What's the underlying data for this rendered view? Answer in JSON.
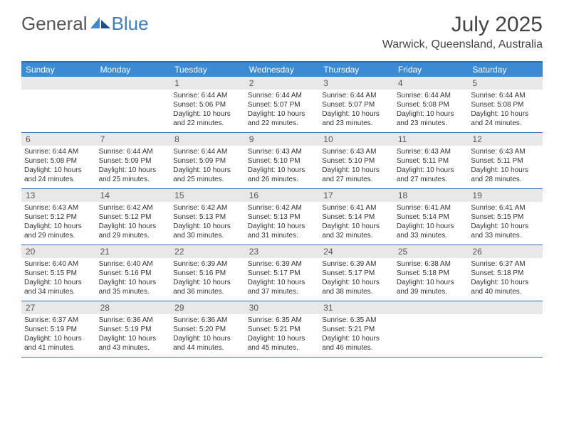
{
  "logo": {
    "text1": "General",
    "text2": "Blue"
  },
  "title": "July 2025",
  "location": "Warwick, Queensland, Australia",
  "colors": {
    "header_bg": "#3b8bd4",
    "border": "#2e6fb5",
    "daynum_bg": "#e8e8e8",
    "text": "#333333"
  },
  "day_names": [
    "Sunday",
    "Monday",
    "Tuesday",
    "Wednesday",
    "Thursday",
    "Friday",
    "Saturday"
  ],
  "weeks": [
    [
      {
        "n": "",
        "sr": "",
        "ss": "",
        "dl": ""
      },
      {
        "n": "",
        "sr": "",
        "ss": "",
        "dl": ""
      },
      {
        "n": "1",
        "sr": "6:44 AM",
        "ss": "5:06 PM",
        "dl": "10 hours and 22 minutes."
      },
      {
        "n": "2",
        "sr": "6:44 AM",
        "ss": "5:07 PM",
        "dl": "10 hours and 22 minutes."
      },
      {
        "n": "3",
        "sr": "6:44 AM",
        "ss": "5:07 PM",
        "dl": "10 hours and 23 minutes."
      },
      {
        "n": "4",
        "sr": "6:44 AM",
        "ss": "5:08 PM",
        "dl": "10 hours and 23 minutes."
      },
      {
        "n": "5",
        "sr": "6:44 AM",
        "ss": "5:08 PM",
        "dl": "10 hours and 24 minutes."
      }
    ],
    [
      {
        "n": "6",
        "sr": "6:44 AM",
        "ss": "5:08 PM",
        "dl": "10 hours and 24 minutes."
      },
      {
        "n": "7",
        "sr": "6:44 AM",
        "ss": "5:09 PM",
        "dl": "10 hours and 25 minutes."
      },
      {
        "n": "8",
        "sr": "6:44 AM",
        "ss": "5:09 PM",
        "dl": "10 hours and 25 minutes."
      },
      {
        "n": "9",
        "sr": "6:43 AM",
        "ss": "5:10 PM",
        "dl": "10 hours and 26 minutes."
      },
      {
        "n": "10",
        "sr": "6:43 AM",
        "ss": "5:10 PM",
        "dl": "10 hours and 27 minutes."
      },
      {
        "n": "11",
        "sr": "6:43 AM",
        "ss": "5:11 PM",
        "dl": "10 hours and 27 minutes."
      },
      {
        "n": "12",
        "sr": "6:43 AM",
        "ss": "5:11 PM",
        "dl": "10 hours and 28 minutes."
      }
    ],
    [
      {
        "n": "13",
        "sr": "6:43 AM",
        "ss": "5:12 PM",
        "dl": "10 hours and 29 minutes."
      },
      {
        "n": "14",
        "sr": "6:42 AM",
        "ss": "5:12 PM",
        "dl": "10 hours and 29 minutes."
      },
      {
        "n": "15",
        "sr": "6:42 AM",
        "ss": "5:13 PM",
        "dl": "10 hours and 30 minutes."
      },
      {
        "n": "16",
        "sr": "6:42 AM",
        "ss": "5:13 PM",
        "dl": "10 hours and 31 minutes."
      },
      {
        "n": "17",
        "sr": "6:41 AM",
        "ss": "5:14 PM",
        "dl": "10 hours and 32 minutes."
      },
      {
        "n": "18",
        "sr": "6:41 AM",
        "ss": "5:14 PM",
        "dl": "10 hours and 33 minutes."
      },
      {
        "n": "19",
        "sr": "6:41 AM",
        "ss": "5:15 PM",
        "dl": "10 hours and 33 minutes."
      }
    ],
    [
      {
        "n": "20",
        "sr": "6:40 AM",
        "ss": "5:15 PM",
        "dl": "10 hours and 34 minutes."
      },
      {
        "n": "21",
        "sr": "6:40 AM",
        "ss": "5:16 PM",
        "dl": "10 hours and 35 minutes."
      },
      {
        "n": "22",
        "sr": "6:39 AM",
        "ss": "5:16 PM",
        "dl": "10 hours and 36 minutes."
      },
      {
        "n": "23",
        "sr": "6:39 AM",
        "ss": "5:17 PM",
        "dl": "10 hours and 37 minutes."
      },
      {
        "n": "24",
        "sr": "6:39 AM",
        "ss": "5:17 PM",
        "dl": "10 hours and 38 minutes."
      },
      {
        "n": "25",
        "sr": "6:38 AM",
        "ss": "5:18 PM",
        "dl": "10 hours and 39 minutes."
      },
      {
        "n": "26",
        "sr": "6:37 AM",
        "ss": "5:18 PM",
        "dl": "10 hours and 40 minutes."
      }
    ],
    [
      {
        "n": "27",
        "sr": "6:37 AM",
        "ss": "5:19 PM",
        "dl": "10 hours and 41 minutes."
      },
      {
        "n": "28",
        "sr": "6:36 AM",
        "ss": "5:19 PM",
        "dl": "10 hours and 43 minutes."
      },
      {
        "n": "29",
        "sr": "6:36 AM",
        "ss": "5:20 PM",
        "dl": "10 hours and 44 minutes."
      },
      {
        "n": "30",
        "sr": "6:35 AM",
        "ss": "5:21 PM",
        "dl": "10 hours and 45 minutes."
      },
      {
        "n": "31",
        "sr": "6:35 AM",
        "ss": "5:21 PM",
        "dl": "10 hours and 46 minutes."
      },
      {
        "n": "",
        "sr": "",
        "ss": "",
        "dl": ""
      },
      {
        "n": "",
        "sr": "",
        "ss": "",
        "dl": ""
      }
    ]
  ],
  "labels": {
    "sunrise": "Sunrise: ",
    "sunset": "Sunset: ",
    "daylight": "Daylight: "
  }
}
